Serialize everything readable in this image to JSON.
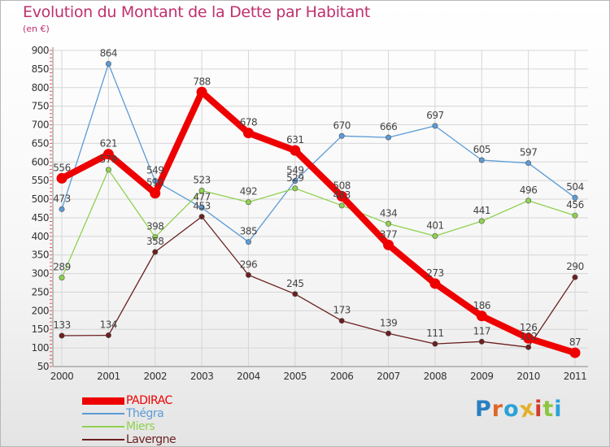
{
  "chart_data": {
    "type": "line",
    "title": "Evolution du Montant de la Dette par Habitant",
    "subtitle": "(en €)",
    "x": [
      "2000",
      "2001",
      "2002",
      "2003",
      "2004",
      "2005",
      "2006",
      "2007",
      "2008",
      "2009",
      "2010",
      "2011"
    ],
    "y_ticks": [
      "50",
      "100",
      "150",
      "200",
      "250",
      "300",
      "350",
      "400",
      "450",
      "500",
      "550",
      "600",
      "650",
      "700",
      "750",
      "800",
      "850",
      "900"
    ],
    "ylim": [
      50,
      900
    ],
    "grid": true,
    "legend_position": "bottom-left",
    "series": [
      {
        "name": "PADIRAC",
        "color": "#ee0000",
        "values": [
          556,
          621,
          516,
          788,
          678,
          631,
          508,
          377,
          273,
          186,
          126,
          87
        ],
        "labels": [
          "556",
          "621",
          "516",
          "788",
          "678",
          "631",
          "508",
          "377",
          "273",
          "186",
          "126",
          "87"
        ]
      },
      {
        "name": "Thégra",
        "color": "#5b9bd5",
        "values": [
          473,
          864,
          549,
          477,
          385,
          549,
          670,
          666,
          697,
          605,
          597,
          504
        ],
        "labels": [
          "473",
          "864",
          "549",
          "477",
          "385",
          "549",
          "670",
          "666",
          "697",
          "605",
          "597",
          "504"
        ]
      },
      {
        "name": "Miers",
        "color": "#8fd14f",
        "values": [
          289,
          579,
          398,
          523,
          492,
          529,
          483,
          434,
          401,
          441,
          496,
          456
        ],
        "labels": [
          "289",
          "579",
          "398",
          "523",
          "492",
          "529",
          "483",
          "434",
          "401",
          "441",
          "496",
          "456"
        ]
      },
      {
        "name": "Lavergne",
        "color": "#6b1f1f",
        "values": [
          133,
          134,
          358,
          453,
          296,
          245,
          173,
          139,
          111,
          117,
          102,
          290
        ],
        "labels": [
          "133",
          "134",
          "358",
          "453",
          "296",
          "245",
          "173",
          "139",
          "111",
          "117",
          "102",
          "290"
        ]
      }
    ]
  },
  "brand": {
    "letters": [
      "P",
      "r",
      "o",
      "x",
      "i",
      "t",
      "i"
    ],
    "colors": [
      "#2a7fc1",
      "#e0662a",
      "#2aa2d8",
      "#e3b02a",
      "#d43c2a",
      "#8cc63f",
      "#2aa2d8"
    ]
  }
}
